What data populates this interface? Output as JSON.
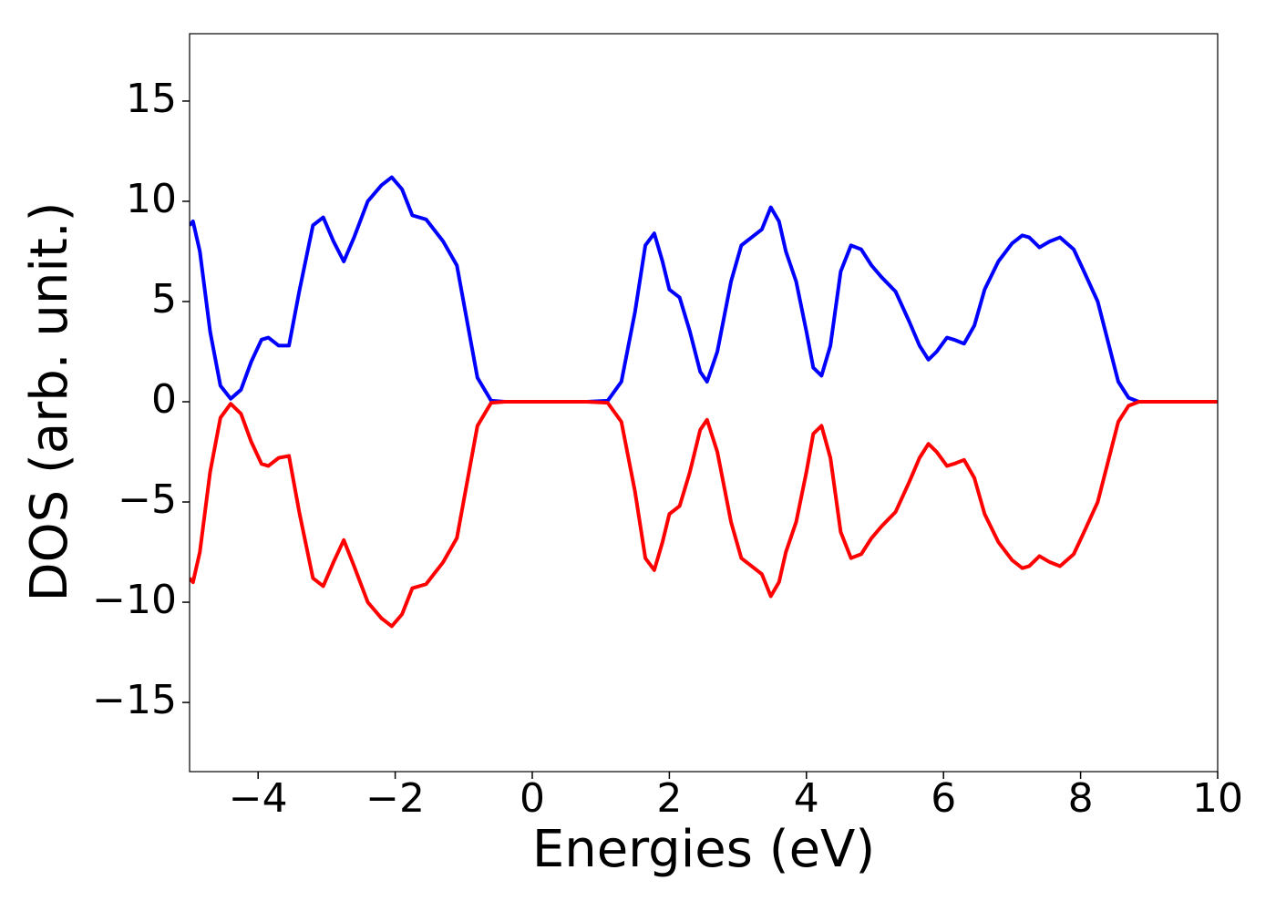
{
  "chart_data": {
    "type": "line",
    "xlabel": "Energies (eV)",
    "ylabel": "DOS (arb. unit.)",
    "x": [
      -5.0,
      -4.95,
      -4.85,
      -4.7,
      -4.55,
      -4.4,
      -4.25,
      -4.1,
      -3.95,
      -3.85,
      -3.7,
      -3.55,
      -3.4,
      -3.2,
      -3.05,
      -2.9,
      -2.75,
      -2.6,
      -2.4,
      -2.2,
      -2.05,
      -1.9,
      -1.75,
      -1.55,
      -1.3,
      -1.1,
      -0.95,
      -0.8,
      -0.6,
      -0.4,
      0,
      0.8,
      1.1,
      1.3,
      1.5,
      1.65,
      1.78,
      1.9,
      2.0,
      2.15,
      2.3,
      2.45,
      2.55,
      2.7,
      2.9,
      3.05,
      3.2,
      3.35,
      3.48,
      3.6,
      3.7,
      3.85,
      4.0,
      4.1,
      4.22,
      4.35,
      4.5,
      4.65,
      4.8,
      4.95,
      5.1,
      5.3,
      5.5,
      5.65,
      5.78,
      5.9,
      6.05,
      6.15,
      6.3,
      6.45,
      6.6,
      6.8,
      7.0,
      7.15,
      7.25,
      7.4,
      7.55,
      7.7,
      7.9,
      8.05,
      8.25,
      8.4,
      8.55,
      8.7,
      8.85,
      10
    ],
    "series": [
      {
        "color": "#0000ff",
        "values": [
          8.8,
          9.0,
          7.5,
          3.5,
          0.8,
          0.15,
          0.6,
          2.0,
          3.1,
          3.2,
          2.8,
          2.8,
          5.5,
          8.8,
          9.2,
          8.0,
          7.0,
          8.2,
          10.0,
          10.8,
          11.2,
          10.6,
          9.3,
          9.1,
          8.0,
          6.8,
          4.0,
          1.2,
          0.05,
          0,
          0,
          0,
          0.05,
          1.0,
          4.5,
          7.8,
          8.4,
          7.0,
          5.6,
          5.2,
          3.5,
          1.5,
          1.0,
          2.5,
          6.0,
          7.8,
          8.2,
          8.6,
          9.7,
          9.0,
          7.5,
          6.0,
          3.5,
          1.7,
          1.3,
          2.8,
          6.5,
          7.8,
          7.6,
          6.8,
          6.2,
          5.5,
          4.0,
          2.8,
          2.1,
          2.5,
          3.2,
          3.1,
          2.9,
          3.8,
          5.6,
          7.0,
          7.9,
          8.3,
          8.2,
          7.7,
          8.0,
          8.2,
          7.6,
          6.5,
          5.0,
          3.0,
          1.0,
          0.2,
          0,
          0
        ]
      },
      {
        "color": "#ff0000",
        "values": [
          -8.8,
          -9.0,
          -7.5,
          -3.5,
          -0.8,
          -0.1,
          -0.6,
          -2.0,
          -3.1,
          -3.2,
          -2.8,
          -2.7,
          -5.5,
          -8.8,
          -9.2,
          -8.0,
          -6.9,
          -8.2,
          -10.0,
          -10.8,
          -11.2,
          -10.6,
          -9.3,
          -9.1,
          -8.0,
          -6.8,
          -4.0,
          -1.2,
          -0.05,
          0,
          0,
          0,
          -0.05,
          -1.0,
          -4.5,
          -7.8,
          -8.4,
          -7.0,
          -5.6,
          -5.2,
          -3.5,
          -1.4,
          -0.9,
          -2.5,
          -6.0,
          -7.8,
          -8.2,
          -8.6,
          -9.7,
          -9.0,
          -7.5,
          -6.0,
          -3.5,
          -1.6,
          -1.2,
          -2.8,
          -6.5,
          -7.8,
          -7.6,
          -6.8,
          -6.2,
          -5.5,
          -4.0,
          -2.8,
          -2.1,
          -2.5,
          -3.2,
          -3.1,
          -2.9,
          -3.8,
          -5.6,
          -7.0,
          -7.9,
          -8.3,
          -8.2,
          -7.7,
          -8.0,
          -8.2,
          -7.6,
          -6.5,
          -5.0,
          -3.0,
          -1.0,
          -0.2,
          0,
          0
        ]
      }
    ],
    "xlim": [
      -5,
      10
    ],
    "xticks": [
      {
        "value": -4,
        "label": "−4"
      },
      {
        "value": -2,
        "label": "−2"
      },
      0,
      2,
      4,
      6,
      8,
      10
    ],
    "ylim": [
      -18.45,
      18.36
    ],
    "yticks": [
      {
        "value": -15,
        "label": "−15"
      },
      {
        "value": -10,
        "label": "−10"
      },
      {
        "value": -5,
        "label": "−5"
      },
      0,
      5,
      10,
      15
    ],
    "grid": false
  }
}
